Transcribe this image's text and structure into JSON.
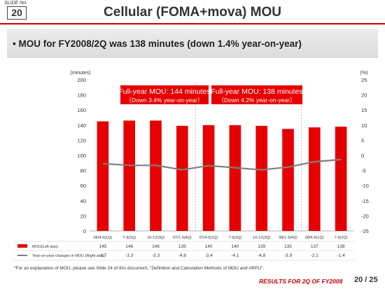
{
  "slide": {
    "label": "SLIDE No.",
    "number": "20"
  },
  "title": "Cellular (FOMA+mova) MOU",
  "headline": "• MOU for FY2008/2Q was 138 minutes (down 1.4% year-on-year)",
  "footnote": "*For an explanation of MOU, please see Slide 24 of this document, \"Definition and Calculation Methods of MOU and ARPU\".",
  "footer": {
    "results": "RESULTS FOR 2Q OF FY2008",
    "page": "20 / 25"
  },
  "colors": {
    "bar": "#e60000",
    "line": "#7f7f7f",
    "accent": "#cc0000"
  },
  "chart_data": {
    "type": "bar",
    "categories": [
      "06/4-6(1Q)",
      "7-9(2Q)",
      "10-12(3Q)",
      "07/1-3(4Q)",
      "07/4-6(1Q)",
      "7-9(2Q)",
      "10-12(3Q)",
      "08/1-3(4Q)",
      "08/4-6(1Q)",
      "7-9(2Q)"
    ],
    "ylabel_left": "(minutes)",
    "ylabel_right": "(%)",
    "ylim_left": [
      0,
      200
    ],
    "yticks_left": [
      0,
      20,
      40,
      60,
      80,
      100,
      120,
      140,
      160,
      180,
      200
    ],
    "ylim_right": [
      -25,
      25
    ],
    "yticks_right": [
      -25,
      -20,
      -15,
      -10,
      -5,
      0,
      5,
      10,
      15,
      20,
      25
    ],
    "grid": false,
    "series": [
      {
        "name": "MOU(Left axis)",
        "type": "bar",
        "axis": "left",
        "values": [
          145,
          146,
          146,
          139,
          140,
          140,
          139,
          135,
          137,
          138
        ],
        "labels": [
          "145",
          "146",
          "146",
          "139",
          "140",
          "140",
          "139",
          "135",
          "137",
          "138"
        ]
      },
      {
        "name": "Year-on-year changes in MOU (Right axis)",
        "type": "line",
        "axis": "right",
        "values": [
          -2.7,
          -3.3,
          -3.3,
          -4.8,
          -3.4,
          -4.1,
          -4.8,
          -3.9,
          -2.1,
          -1.4
        ],
        "labels": [
          "-2.7",
          "-3.3",
          "-3.3",
          "-4.8",
          "-3.4",
          "-4.1",
          "-4.8",
          "-3.9",
          "-2.1",
          "-1.4"
        ]
      }
    ],
    "annotations": [
      {
        "line1": "Full-year MOU: 144 minutes",
        "line2": "（Down 3.4% year-on-year）"
      },
      {
        "line1": "Full-year MOU: 138 minutes",
        "line2": "（Down 4.2% year-on-year）"
      }
    ]
  }
}
